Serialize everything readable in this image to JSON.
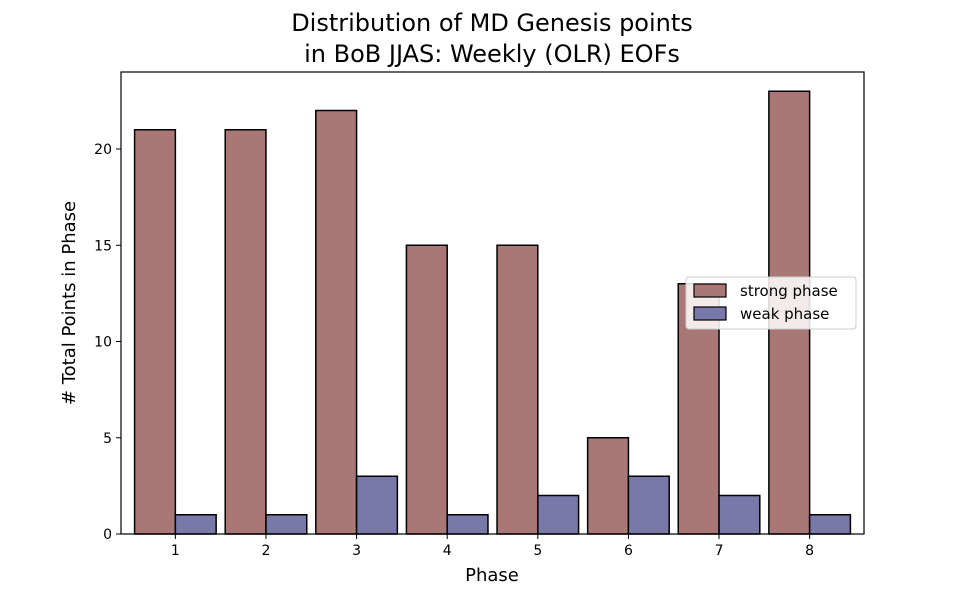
{
  "chart_data": {
    "type": "bar",
    "title": [
      "Distribution of MD Genesis points",
      "in BoB JJAS: Weekly (OLR) EOFs"
    ],
    "xlabel": "Phase",
    "ylabel": "# Total Points in Phase",
    "categories": [
      "1",
      "2",
      "3",
      "4",
      "5",
      "6",
      "7",
      "8"
    ],
    "series": [
      {
        "name": "strong phase",
        "values": [
          21,
          21,
          22,
          15,
          15,
          5,
          13,
          23
        ],
        "color": "#a97775"
      },
      {
        "name": "weak phase",
        "values": [
          1,
          1,
          3,
          1,
          2,
          3,
          2,
          1
        ],
        "color": "#7878a9"
      }
    ],
    "ylim": [
      0,
      24
    ],
    "yticks": [
      0,
      5,
      10,
      15,
      20
    ],
    "grid": false,
    "legend_position": "center-right"
  }
}
